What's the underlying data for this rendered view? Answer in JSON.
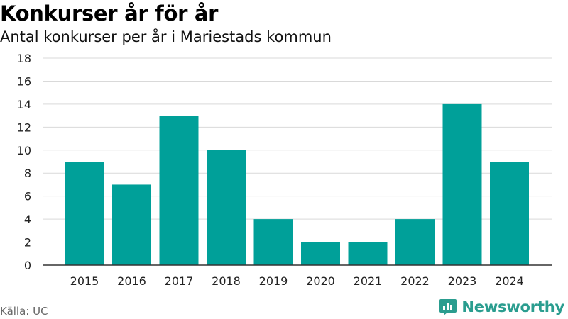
{
  "title": "Konkurser år för år",
  "subtitle": "Antal konkurser per år i Mariestads kommun",
  "source": "Källa: UC",
  "brand": {
    "name": "Newsworthy",
    "logo_icon": "newsworthy-logo-icon",
    "color": "#2a9d8f"
  },
  "colors": {
    "bar": "#00a099",
    "grid": "#d9d9d9",
    "axis": "#333333"
  },
  "chart_data": {
    "type": "bar",
    "title": "Konkurser år för år",
    "subtitle": "Antal konkurser per år i Mariestads kommun",
    "xlabel": "",
    "ylabel": "",
    "categories": [
      "2015",
      "2016",
      "2017",
      "2018",
      "2019",
      "2020",
      "2021",
      "2022",
      "2023",
      "2024"
    ],
    "values": [
      9,
      7,
      13,
      10,
      4,
      2,
      2,
      4,
      14,
      9
    ],
    "ylim": [
      0,
      18
    ],
    "yticks": [
      0,
      2,
      4,
      6,
      8,
      10,
      12,
      14,
      16,
      18
    ],
    "grid": true,
    "legend": "none"
  }
}
